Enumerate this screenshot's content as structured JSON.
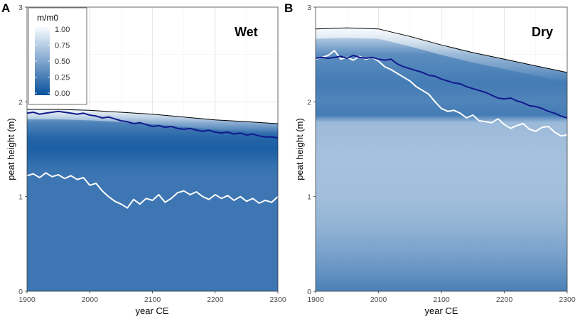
{
  "chart_data": [
    {
      "panel_letter": "A",
      "title": "Wet",
      "type": "line",
      "xlabel": "year CE",
      "ylabel": "peat height (m)",
      "xlim": [
        1900,
        2300
      ],
      "ylim": [
        0,
        3
      ],
      "xticks": [
        "1900",
        "2000",
        "2100",
        "2200",
        "2300"
      ],
      "yticks": [
        "0",
        "1",
        "2",
        "3"
      ],
      "legend": {
        "title": "m/m0",
        "labels": [
          "1.00",
          "0.75",
          "0.50",
          "0.25",
          "0.00"
        ],
        "placement": "top-left"
      },
      "colors": {
        "low": "#08519c",
        "high": "#f7fbff",
        "surface": "#000000",
        "dark_line": "#101a8c",
        "white_line": "#ffffff"
      },
      "background_fill": {
        "description": "m/m0 shading between 0 and the peat surface",
        "stops": [
          {
            "h": 0.0,
            "v": 0.22
          },
          {
            "h": 1.2,
            "v": 0.22
          },
          {
            "h": 1.3,
            "v": 0.2
          },
          {
            "h": 1.5,
            "v": 0.08
          },
          {
            "h": 1.62,
            "v": 0.12
          },
          {
            "h": 1.78,
            "v": 0.3
          },
          {
            "h": 1.86,
            "v": 0.55
          },
          {
            "h": 1.95,
            "v": 0.85
          }
        ]
      },
      "series": [
        {
          "name": "peat surface",
          "x": [
            1900,
            1950,
            2000,
            2050,
            2100,
            2150,
            2200,
            2250,
            2300
          ],
          "y": [
            1.92,
            1.92,
            1.91,
            1.89,
            1.87,
            1.84,
            1.81,
            1.79,
            1.77
          ]
        },
        {
          "name": "dark line",
          "x": [
            1900,
            1910,
            1920,
            1930,
            1940,
            1950,
            1960,
            1970,
            1980,
            1990,
            2000,
            2010,
            2020,
            2030,
            2040,
            2050,
            2060,
            2070,
            2080,
            2090,
            2100,
            2110,
            2120,
            2130,
            2140,
            2150,
            2160,
            2170,
            2180,
            2190,
            2200,
            2210,
            2220,
            2230,
            2240,
            2250,
            2260,
            2270,
            2280,
            2290,
            2300
          ],
          "y": [
            1.88,
            1.89,
            1.87,
            1.88,
            1.89,
            1.9,
            1.89,
            1.88,
            1.87,
            1.88,
            1.86,
            1.85,
            1.83,
            1.84,
            1.82,
            1.8,
            1.79,
            1.77,
            1.78,
            1.76,
            1.74,
            1.75,
            1.73,
            1.74,
            1.72,
            1.71,
            1.72,
            1.7,
            1.69,
            1.7,
            1.68,
            1.67,
            1.68,
            1.66,
            1.67,
            1.65,
            1.66,
            1.64,
            1.63,
            1.63,
            1.62
          ]
        },
        {
          "name": "white line",
          "x": [
            1900,
            1910,
            1920,
            1930,
            1940,
            1950,
            1960,
            1970,
            1980,
            1990,
            2000,
            2010,
            2020,
            2030,
            2040,
            2050,
            2060,
            2070,
            2080,
            2090,
            2100,
            2110,
            2120,
            2130,
            2140,
            2150,
            2160,
            2170,
            2180,
            2190,
            2200,
            2210,
            2220,
            2230,
            2240,
            2250,
            2260,
            2270,
            2280,
            2290,
            2300
          ],
          "y": [
            1.22,
            1.24,
            1.2,
            1.25,
            1.21,
            1.23,
            1.19,
            1.22,
            1.18,
            1.2,
            1.12,
            1.14,
            1.06,
            1.0,
            0.95,
            0.92,
            0.88,
            0.97,
            0.92,
            0.98,
            0.96,
            1.02,
            0.94,
            0.98,
            1.04,
            1.06,
            1.02,
            1.05,
            1.0,
            0.97,
            1.02,
            0.98,
            1.01,
            0.96,
            1.0,
            0.95,
            0.98,
            0.93,
            0.96,
            0.94,
            1.0
          ]
        }
      ]
    },
    {
      "panel_letter": "B",
      "title": "Dry",
      "type": "line",
      "xlabel": "year CE",
      "ylabel": "peat height (m)",
      "xlim": [
        1900,
        2300
      ],
      "ylim": [
        0,
        3
      ],
      "xticks": [
        "1900",
        "2000",
        "2100",
        "2200",
        "2300"
      ],
      "yticks": [
        "0",
        "1",
        "2",
        "3"
      ],
      "colors": {
        "low": "#08519c",
        "high": "#f7fbff",
        "surface": "#000000",
        "dark_line": "#101a8c",
        "white_line": "#ffffff"
      },
      "background_fill": {
        "description": "m/m0 shading between 0 and the peat surface",
        "stops": [
          {
            "h": 0.0,
            "v": 0.28
          },
          {
            "h": 0.35,
            "v": 0.45
          },
          {
            "h": 0.7,
            "v": 0.58
          },
          {
            "h": 1.0,
            "v": 0.64
          },
          {
            "h": 1.4,
            "v": 0.66
          },
          {
            "h": 1.78,
            "v": 0.62
          },
          {
            "h": 1.86,
            "v": 0.25
          },
          {
            "h": 2.0,
            "v": 0.3
          },
          {
            "h": 2.2,
            "v": 0.25
          },
          {
            "h": 2.5,
            "v": 0.35
          },
          {
            "h": 2.7,
            "v": 0.75
          },
          {
            "h": 2.8,
            "v": 0.95
          }
        ]
      },
      "series": [
        {
          "name": "peat surface",
          "x": [
            1900,
            1950,
            2000,
            2050,
            2100,
            2150,
            2200,
            2250,
            2300
          ],
          "y": [
            2.77,
            2.78,
            2.77,
            2.69,
            2.6,
            2.52,
            2.45,
            2.38,
            2.31
          ]
        },
        {
          "name": "dark line",
          "x": [
            1900,
            1910,
            1920,
            1930,
            1940,
            1950,
            1960,
            1970,
            1980,
            1990,
            2000,
            2010,
            2020,
            2030,
            2040,
            2050,
            2060,
            2070,
            2080,
            2090,
            2100,
            2110,
            2120,
            2130,
            2140,
            2150,
            2160,
            2170,
            2180,
            2190,
            2200,
            2210,
            2220,
            2230,
            2240,
            2250,
            2260,
            2270,
            2280,
            2290,
            2300
          ],
          "y": [
            2.46,
            2.47,
            2.46,
            2.47,
            2.48,
            2.46,
            2.49,
            2.47,
            2.46,
            2.47,
            2.45,
            2.44,
            2.45,
            2.4,
            2.37,
            2.35,
            2.33,
            2.31,
            2.28,
            2.27,
            2.24,
            2.22,
            2.2,
            2.19,
            2.16,
            2.14,
            2.12,
            2.1,
            2.07,
            2.04,
            2.03,
            2.04,
            2.01,
            1.99,
            1.96,
            1.95,
            1.93,
            1.9,
            1.88,
            1.85,
            1.83
          ]
        },
        {
          "name": "white line",
          "x": [
            1900,
            1910,
            1920,
            1930,
            1940,
            1950,
            1960,
            1970,
            1980,
            1990,
            2000,
            2010,
            2020,
            2030,
            2040,
            2050,
            2060,
            2070,
            2080,
            2090,
            2100,
            2110,
            2120,
            2130,
            2140,
            2150,
            2160,
            2170,
            2180,
            2190,
            2200,
            2210,
            2220,
            2230,
            2240,
            2250,
            2260,
            2270,
            2280,
            2290,
            2300
          ],
          "y": [
            2.45,
            2.47,
            2.49,
            2.54,
            2.45,
            2.47,
            2.44,
            2.48,
            2.45,
            2.47,
            2.43,
            2.37,
            2.34,
            2.3,
            2.26,
            2.22,
            2.16,
            2.12,
            2.08,
            2.0,
            1.93,
            1.9,
            1.91,
            1.88,
            1.83,
            1.86,
            1.8,
            1.79,
            1.78,
            1.82,
            1.76,
            1.72,
            1.75,
            1.77,
            1.71,
            1.69,
            1.73,
            1.74,
            1.68,
            1.64,
            1.65
          ]
        }
      ]
    }
  ]
}
